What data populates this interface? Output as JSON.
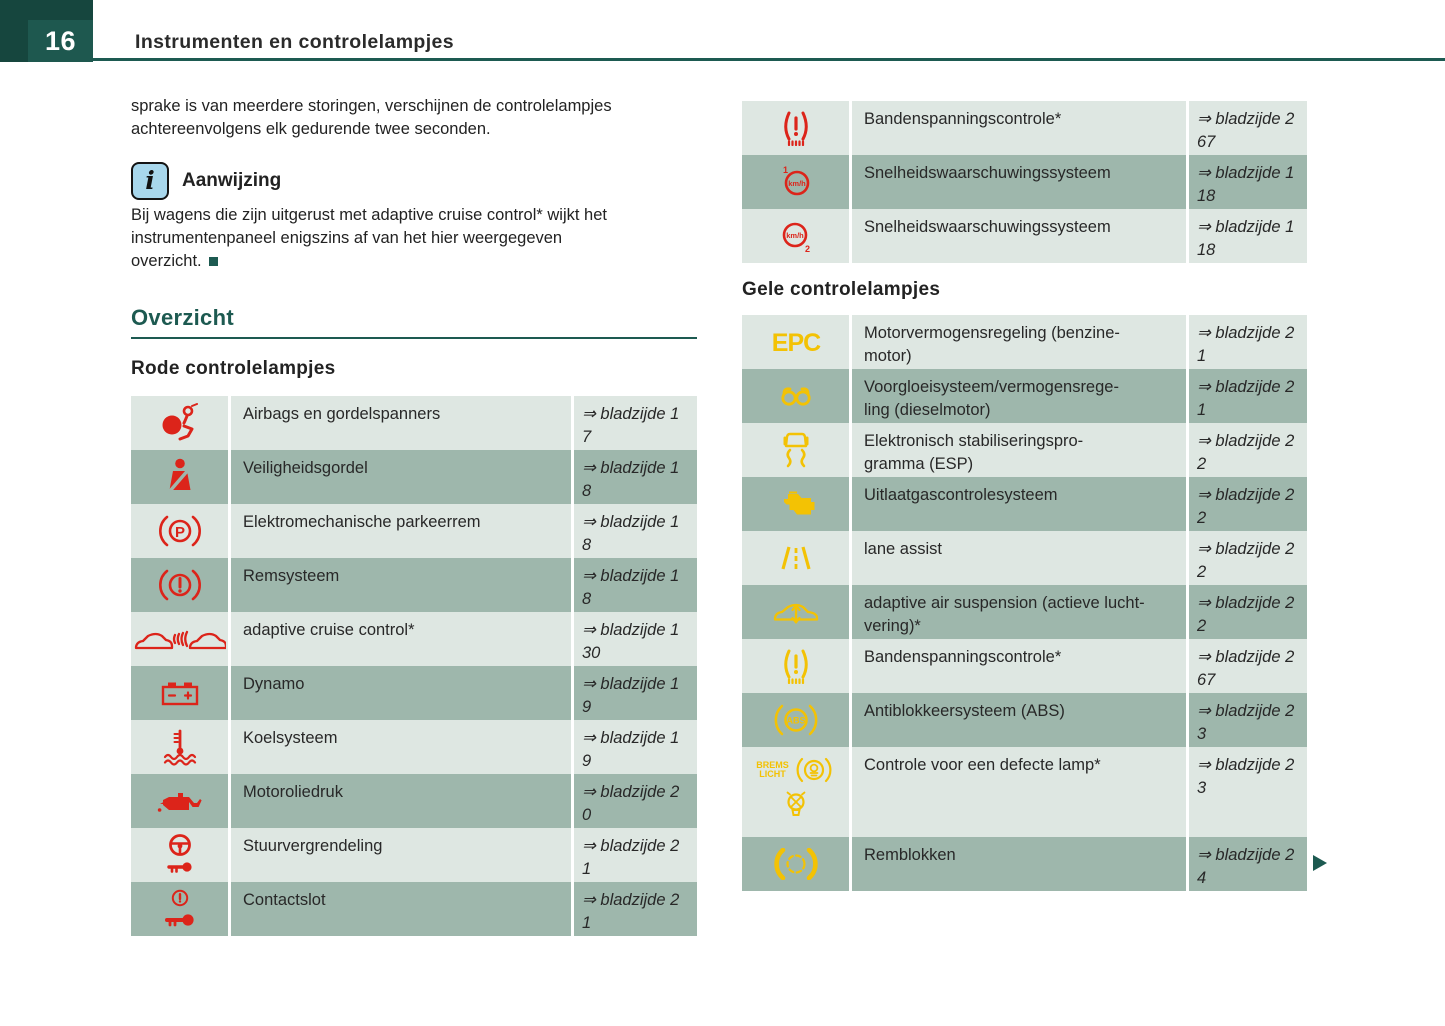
{
  "page": {
    "number": "16",
    "title": "Instrumenten en controlelampjes"
  },
  "colors": {
    "accent_teal": "#1d5a51",
    "lamp_red": "#dc241a",
    "lamp_yellow": "#f3c204",
    "row_light": "#dee7e2",
    "row_dark": "#9eb7ac",
    "note_icon_bg": "#a8d7ec"
  },
  "intro_text": "sprake is van meerdere storingen, verschijnen de controlelampjes\nachtereenvolgens elk gedurende twee seconden.",
  "note": {
    "icon": "info-icon",
    "title": "Aanwijzing",
    "text": "Bij wagens die zijn uitgerust met adaptive cruise control* wijkt het\ninstrumentenpaneel enigszins af van het hier weergegeven\noverzicht."
  },
  "overview": {
    "title": "Overzicht"
  },
  "red_section": {
    "heading": "Rode controlelampjes",
    "rows": [
      {
        "icon": "airbag-icon",
        "label": "Airbags en gordelspanners",
        "ref": "⇒ bladzijde 1\n7"
      },
      {
        "icon": "seatbelt-icon",
        "label": "Veiligheidsgordel",
        "ref": "⇒ bladzijde 1\n8"
      },
      {
        "icon": "parking-brake-icon",
        "label": "Elektromechanische parkeerrem",
        "ref": "⇒ bladzijde 1\n8"
      },
      {
        "icon": "brake-system-icon",
        "label": "Remsysteem",
        "ref": "⇒ bladzijde 1\n8"
      },
      {
        "icon": "adaptive-cruise-icon",
        "label": "adaptive cruise control*",
        "ref": "⇒ bladzijde 1\n30"
      },
      {
        "icon": "battery-icon",
        "label": "Dynamo",
        "ref": "⇒ bladzijde 1\n9"
      },
      {
        "icon": "coolant-icon",
        "label": "Koelsysteem",
        "ref": "⇒ bladzijde 1\n9"
      },
      {
        "icon": "oil-pressure-icon",
        "label": "Motoroliedruk",
        "ref": "⇒ bladzijde 2\n0"
      },
      {
        "icon": "steering-lock-icon",
        "label": "Stuurvergrendeling",
        "ref": "⇒ bladzijde 2\n1"
      },
      {
        "icon": "ignition-lock-icon",
        "label": "Contactslot",
        "ref": "⇒ bladzijde 2\n1"
      }
    ]
  },
  "red_section_continued": {
    "rows": [
      {
        "icon": "tire-pressure-icon",
        "label": "Bandenspanningscontrole*",
        "ref": "⇒ bladzijde 2\n67"
      },
      {
        "icon": "speed-warning-1-icon",
        "label": "Snelheidswaarschuwingssysteem",
        "ref": "⇒ bladzijde 1\n18"
      },
      {
        "icon": "speed-warning-2-icon",
        "label": "Snelheidswaarschuwingssysteem",
        "ref": "⇒ bladzijde 1\n18"
      }
    ]
  },
  "yellow_section": {
    "heading": "Gele controlelampjes",
    "rows": [
      {
        "icon": "epc-icon",
        "label": "Motorvermogensregeling (benzine-\nmotor)",
        "ref": "⇒ bladzijde 2\n1"
      },
      {
        "icon": "glow-plug-icon",
        "label": "Voorgloeisysteem/vermogensrege-\nling (dieselmotor)",
        "ref": "⇒ bladzijde 2\n1"
      },
      {
        "icon": "esp-icon",
        "label": "Elektronisch stabiliseringspro-\ngramma (ESP)",
        "ref": "⇒ bladzijde 2\n2"
      },
      {
        "icon": "engine-icon",
        "label": "Uitlaatgascontrolesysteem",
        "ref": "⇒ bladzijde 2\n2"
      },
      {
        "icon": "lane-assist-icon",
        "label": "lane assist",
        "ref": "⇒ bladzijde 2\n2"
      },
      {
        "icon": "air-suspension-icon",
        "label": "adaptive air suspension (actieve lucht-\nvering)*",
        "ref": "⇒ bladzijde 2\n2"
      },
      {
        "icon": "tire-pressure-icon",
        "label": "Bandenspanningscontrole*",
        "ref": "⇒ bladzijde 2\n67"
      },
      {
        "icon": "abs-icon",
        "label": "Antiblokkeersysteem (ABS)",
        "ref": "⇒ bladzijde 2\n3"
      },
      {
        "icon_text": "BREMS\nLICHT",
        "icon": "brake-light-icon",
        "icon2": "bulb-icon",
        "label": "Controle voor een defecte lamp*",
        "ref": "⇒ bladzijde 2\n3"
      },
      {
        "icon": "brake-pads-icon",
        "label": "Remblokken",
        "ref": "⇒ bladzijde 2\n4"
      }
    ]
  },
  "continuation_marker": "arrow-right-icon"
}
